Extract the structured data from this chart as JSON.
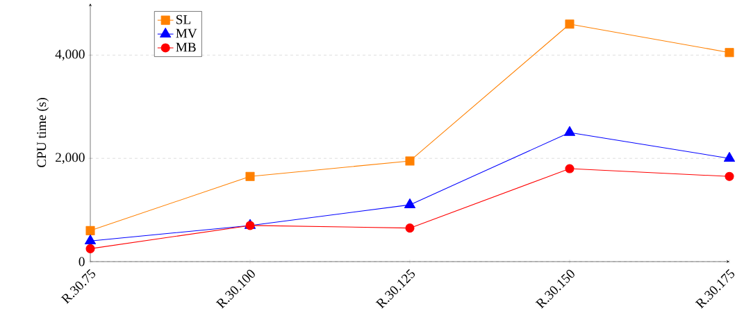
{
  "chart_data": {
    "type": "line",
    "ylabel": "CPU time (s)",
    "categories": [
      "R.30.75",
      "R.30.100",
      "R.30.125",
      "R.30.150",
      "R.30.175"
    ],
    "series": [
      {
        "name": "SL",
        "color": "#ff8000",
        "marker": "square",
        "values": [
          600,
          1650,
          1950,
          4600,
          4050
        ]
      },
      {
        "name": "MV",
        "color": "#0000ff",
        "marker": "triangle",
        "values": [
          400,
          700,
          1100,
          2500,
          2000
        ]
      },
      {
        "name": "MB",
        "color": "#ff0000",
        "marker": "circle",
        "values": [
          250,
          700,
          650,
          1800,
          1650
        ]
      }
    ],
    "ylim": [
      0,
      5000
    ],
    "yticks": [
      0,
      {
        "value": 2000,
        "label": "2,000"
      },
      {
        "value": 4000,
        "label": "4,000"
      }
    ],
    "grid": "y",
    "legend": "top left",
    "line_style": "solid"
  }
}
